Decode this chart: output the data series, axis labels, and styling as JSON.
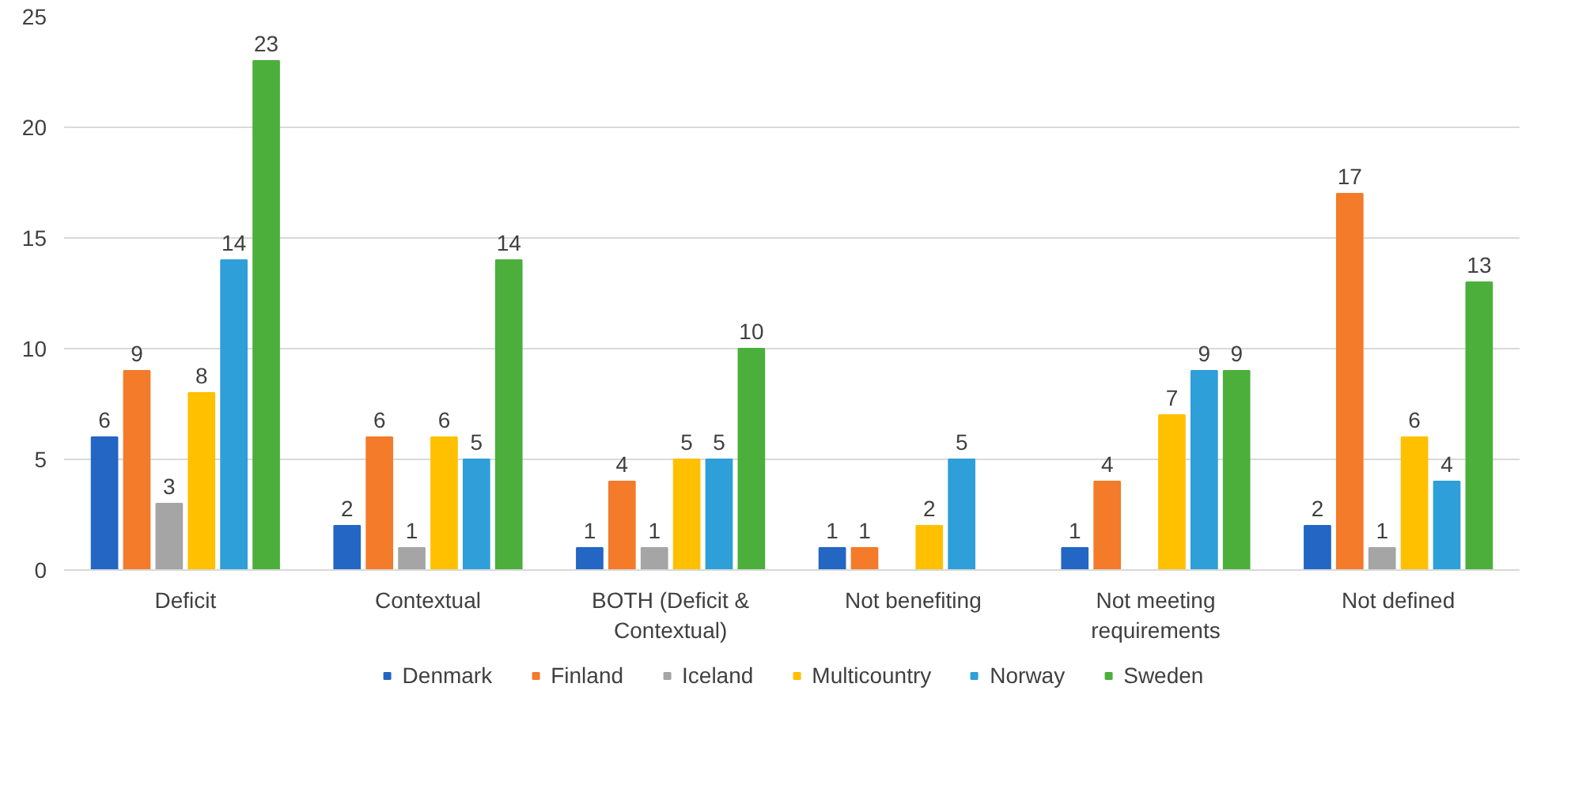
{
  "chart_data": {
    "type": "bar",
    "categories": [
      "Deficit",
      "Contextual",
      "BOTH (Deficit & Contextual)",
      "Not benefiting",
      "Not meeting requirements",
      "Not defined"
    ],
    "series": [
      {
        "name": "Denmark",
        "color": "#2366c4",
        "values": [
          6,
          2,
          1,
          1,
          1,
          2
        ]
      },
      {
        "name": "Finland",
        "color": "#f47b2a",
        "values": [
          9,
          6,
          4,
          1,
          4,
          17
        ]
      },
      {
        "name": "Iceland",
        "color": "#a5a5a5",
        "values": [
          3,
          1,
          1,
          null,
          null,
          1
        ]
      },
      {
        "name": "Multicountry",
        "color": "#ffc000",
        "values": [
          8,
          6,
          5,
          2,
          7,
          6
        ]
      },
      {
        "name": "Norway",
        "color": "#2e9fd9",
        "values": [
          14,
          5,
          5,
          5,
          9,
          4
        ]
      },
      {
        "name": "Sweden",
        "color": "#4caf3c",
        "values": [
          23,
          14,
          10,
          null,
          9,
          13
        ]
      }
    ],
    "ylim": [
      0,
      25
    ],
    "yticks": [
      0,
      5,
      10,
      15,
      20,
      25
    ],
    "grid": "y",
    "legend": "bottom",
    "data_labels": true
  }
}
